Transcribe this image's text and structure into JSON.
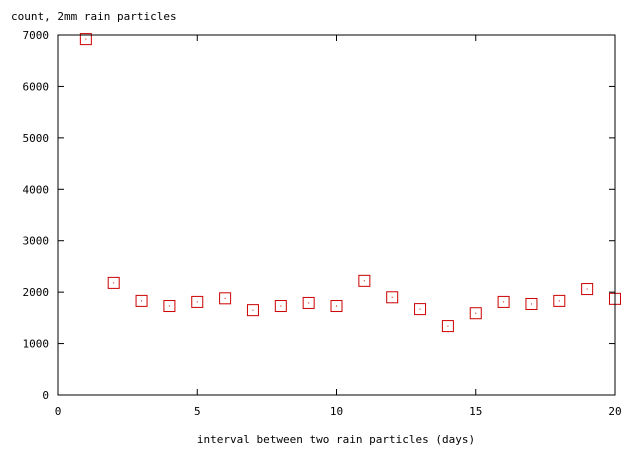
{
  "chart_data": {
    "type": "scatter",
    "ylabel": "count, 2mm rain particles",
    "xlabel": "interval between two rain particles (days)",
    "xlim": [
      0,
      20
    ],
    "ylim": [
      0,
      7000
    ],
    "x_ticks": [
      0,
      5,
      10,
      15,
      20
    ],
    "y_ticks": [
      0,
      1000,
      2000,
      3000,
      4000,
      5000,
      6000,
      7000
    ],
    "grid": false,
    "marker": "open-square-with-dot",
    "marker_color": "#cc0000",
    "series": [
      {
        "x": [
          1,
          2,
          3,
          4,
          5,
          6,
          7,
          8,
          9,
          10,
          11,
          12,
          13,
          14,
          15,
          16,
          17,
          18,
          19,
          20
        ],
        "y": [
          6920,
          2180,
          1830,
          1730,
          1810,
          1880,
          1650,
          1730,
          1790,
          1730,
          2220,
          1900,
          1670,
          1340,
          1590,
          1810,
          1770,
          1830,
          2060,
          1870
        ]
      }
    ]
  }
}
